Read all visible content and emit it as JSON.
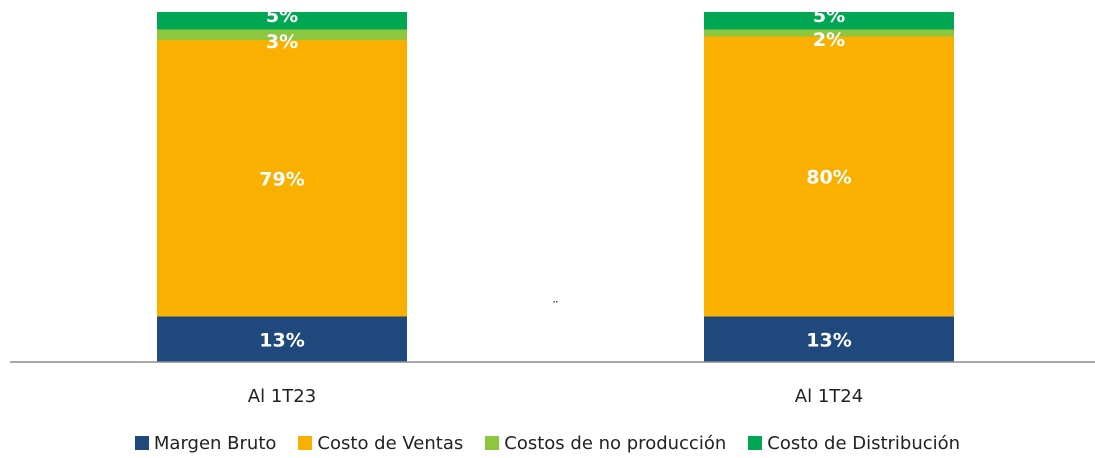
{
  "chart_data": {
    "type": "bar",
    "stacked": true,
    "categories": [
      "Al 1T23",
      "Al 1T24"
    ],
    "series": [
      {
        "name": "Margen Bruto",
        "color": "#1F497D",
        "values": [
          13,
          13
        ],
        "labels": [
          "13%",
          "13%"
        ]
      },
      {
        "name": "Costo de Ventas",
        "color": "#F9B000",
        "values": [
          79,
          80
        ],
        "labels": [
          "79%",
          "80%"
        ]
      },
      {
        "name": "Costos de no producción",
        "color": "#8DC63F",
        "values": [
          3,
          2
        ],
        "labels": [
          "3%",
          "2%"
        ]
      },
      {
        "name": "Costo de Distribución",
        "color": "#00A651",
        "values": [
          5,
          5
        ],
        "labels": [
          "5%",
          "5%"
        ]
      }
    ],
    "ylim": [
      0,
      100
    ],
    "grid": false,
    "legend": "bottom",
    "annotation": "¨"
  }
}
